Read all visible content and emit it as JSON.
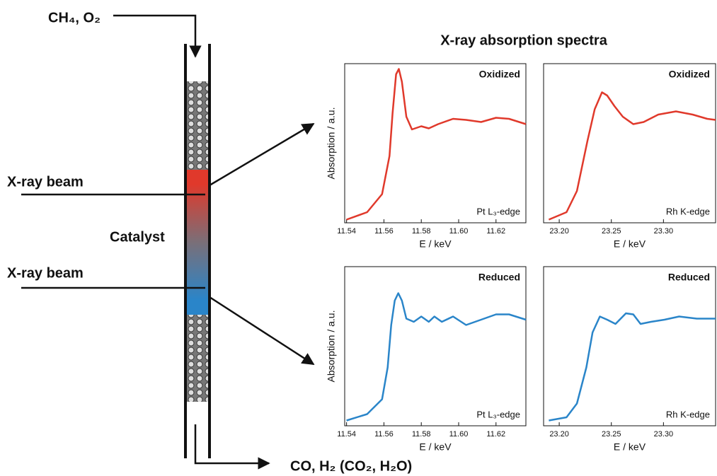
{
  "title": "X-ray absorption spectra",
  "diagram": {
    "inlet": "CH₄, O₂",
    "outlet": "CO, H₂ (CO₂, H₂O)",
    "beam_top": "X-ray beam",
    "beam_bottom": "X-ray beam",
    "catalyst": "Catalyst"
  },
  "chart_data": [
    {
      "type": "line",
      "annotation": "Oxidized",
      "edge_label": "Pt L₃-edge",
      "xlabel": "E / keV",
      "ylabel": "Absorption / a.u.",
      "color": "#e0392b",
      "x": [
        11.54,
        11.551,
        11.559,
        11.563,
        11.5646,
        11.5665,
        11.568,
        11.5696,
        11.572,
        11.575,
        11.58,
        11.584,
        11.589,
        11.597,
        11.604,
        11.612,
        11.62,
        11.627,
        11.636
      ],
      "values": [
        0.03,
        0.1,
        0.27,
        0.63,
        1.03,
        1.4,
        1.45,
        1.33,
        1.0,
        0.88,
        0.91,
        0.89,
        0.93,
        0.98,
        0.97,
        0.95,
        0.99,
        0.98,
        0.93
      ],
      "xlim": [
        11.539,
        11.636
      ],
      "ylim": [
        0,
        1.5
      ],
      "xticks": [
        11.54,
        11.56,
        11.58,
        {
          "value": 11.6,
          "label": "11.60"
        },
        11.62
      ]
    },
    {
      "type": "line",
      "annotation": "Oxidized",
      "edge_label": "Rh K-edge",
      "xlabel": "E / keV",
      "color": "#e0392b",
      "x": [
        23.19,
        23.207,
        23.217,
        23.227,
        23.234,
        23.241,
        23.246,
        23.253,
        23.261,
        23.271,
        23.281,
        23.295,
        23.312,
        23.328,
        23.342,
        23.35
      ],
      "values": [
        0.03,
        0.1,
        0.3,
        0.77,
        1.07,
        1.23,
        1.2,
        1.1,
        1.0,
        0.93,
        0.95,
        1.02,
        1.05,
        1.02,
        0.98,
        0.97
      ],
      "xlim": [
        23.185,
        23.35
      ],
      "ylim": [
        0,
        1.5
      ],
      "xticks": [
        {
          "value": 23.2,
          "label": "23.20"
        },
        23.25,
        {
          "value": 23.3,
          "label": "23.30"
        }
      ]
    },
    {
      "type": "line",
      "annotation": "Reduced",
      "edge_label": "Pt L₃-edge",
      "xlabel": "E / keV",
      "ylabel": "Absorption / a.u.",
      "color": "#2a85c9",
      "x": [
        11.54,
        11.551,
        11.559,
        11.562,
        11.5639,
        11.5658,
        11.5677,
        11.5696,
        11.572,
        11.576,
        11.58,
        11.584,
        11.587,
        11.591,
        11.597,
        11.604,
        11.612,
        11.62,
        11.627,
        11.636
      ],
      "values": [
        0.05,
        0.11,
        0.25,
        0.55,
        0.95,
        1.18,
        1.25,
        1.18,
        1.01,
        0.98,
        1.03,
        0.98,
        1.03,
        0.98,
        1.03,
        0.95,
        1.0,
        1.05,
        1.05,
        1.0
      ],
      "xlim": [
        11.539,
        11.636
      ],
      "ylim": [
        0,
        1.5
      ],
      "xticks": [
        11.54,
        11.56,
        11.58,
        {
          "value": 11.6,
          "label": "11.60"
        },
        11.62
      ]
    },
    {
      "type": "line",
      "annotation": "Reduced",
      "edge_label": "Rh K-edge",
      "xlabel": "E / keV",
      "color": "#2a85c9",
      "x": [
        23.19,
        23.207,
        23.217,
        23.226,
        23.232,
        23.239,
        23.246,
        23.254,
        23.264,
        23.271,
        23.278,
        23.288,
        23.301,
        23.315,
        23.332,
        23.35
      ],
      "values": [
        0.05,
        0.08,
        0.21,
        0.55,
        0.88,
        1.03,
        1.0,
        0.96,
        1.06,
        1.05,
        0.96,
        0.98,
        1.0,
        1.03,
        1.01,
        1.01
      ],
      "xlim": [
        23.185,
        23.35
      ],
      "ylim": [
        0,
        1.5
      ],
      "xticks": [
        {
          "value": 23.2,
          "label": "23.20"
        },
        23.25,
        {
          "value": 23.3,
          "label": "23.30"
        }
      ]
    }
  ]
}
